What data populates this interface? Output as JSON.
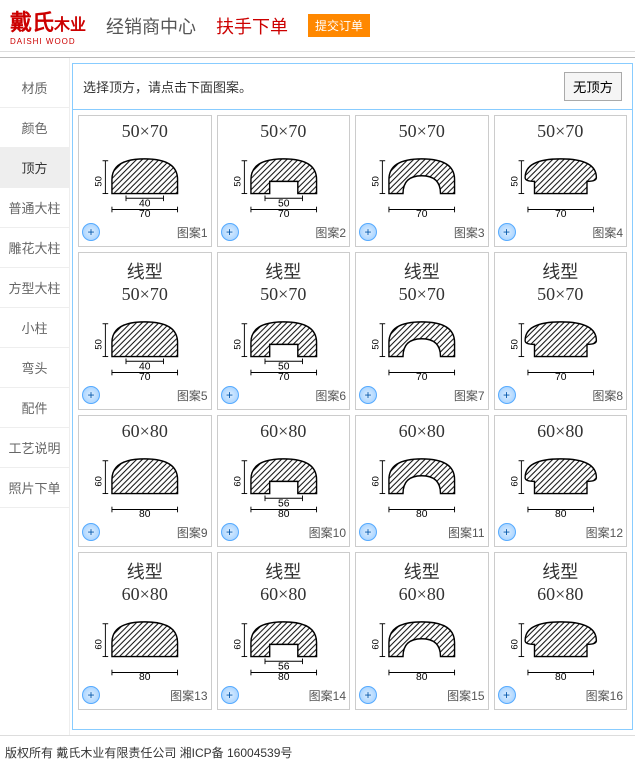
{
  "header": {
    "logo_main": "戴氏",
    "logo_suffix": "木业",
    "logo_en": "DAISHI WOOD",
    "title_center": "经销商中心",
    "title_order": "扶手下单",
    "submit": "提交订单"
  },
  "sidebar": {
    "items": [
      "材质",
      "颜色",
      "顶方",
      "普通大柱",
      "雕花大柱",
      "方型大柱",
      "小柱",
      "弯头",
      "配件",
      "工艺说明",
      "照片下单"
    ],
    "active_index": 2
  },
  "content": {
    "instruction": "选择顶方，请点击下面图案。",
    "no_top": "无顶方",
    "patterns": [
      {
        "top": "50×70",
        "line": false,
        "w1": "40",
        "w2": "70",
        "h": "50",
        "shape": "round",
        "label": "图案1"
      },
      {
        "top": "50×70",
        "line": false,
        "w1": "50",
        "w2": "70",
        "h": "50",
        "shape": "notch",
        "label": "图案2"
      },
      {
        "top": "50×70",
        "line": false,
        "w1": "",
        "w2": "70",
        "h": "50",
        "shape": "arch",
        "label": "图案3"
      },
      {
        "top": "50×70",
        "line": false,
        "w1": "",
        "w2": "70",
        "h": "50",
        "shape": "mushroom",
        "label": "图案4"
      },
      {
        "top": "50×70",
        "line": true,
        "w1": "40",
        "w2": "70",
        "h": "50",
        "shape": "round",
        "label": "图案5"
      },
      {
        "top": "50×70",
        "line": true,
        "w1": "50",
        "w2": "70",
        "h": "50",
        "shape": "notch",
        "label": "图案6"
      },
      {
        "top": "50×70",
        "line": true,
        "w1": "",
        "w2": "70",
        "h": "50",
        "shape": "arch",
        "label": "图案7"
      },
      {
        "top": "50×70",
        "line": true,
        "w1": "",
        "w2": "70",
        "h": "50",
        "shape": "mushroom",
        "label": "图案8"
      },
      {
        "top": "60×80",
        "line": false,
        "w1": "",
        "w2": "80",
        "h": "60",
        "shape": "round",
        "label": "图案9"
      },
      {
        "top": "60×80",
        "line": false,
        "w1": "56",
        "w2": "80",
        "h": "60",
        "shape": "notch",
        "label": "图案10"
      },
      {
        "top": "60×80",
        "line": false,
        "w1": "",
        "w2": "80",
        "h": "60",
        "shape": "arch",
        "label": "图案11"
      },
      {
        "top": "60×80",
        "line": false,
        "w1": "",
        "w2": "80",
        "h": "60",
        "shape": "mushroom",
        "label": "图案12"
      },
      {
        "top": "60×80",
        "line": true,
        "w1": "",
        "w2": "80",
        "h": "60",
        "shape": "round",
        "label": "图案13"
      },
      {
        "top": "60×80",
        "line": true,
        "w1": "56",
        "w2": "80",
        "h": "60",
        "shape": "notch",
        "label": "图案14"
      },
      {
        "top": "60×80",
        "line": true,
        "w1": "",
        "w2": "80",
        "h": "60",
        "shape": "arch",
        "label": "图案15"
      },
      {
        "top": "60×80",
        "line": true,
        "w1": "",
        "w2": "80",
        "h": "60",
        "shape": "mushroom",
        "label": "图案16"
      }
    ]
  },
  "footer": {
    "text": "版权所有 戴氏木业有限责任公司   湘ICP备 16004539号"
  },
  "style": {
    "hatch_color": "#000",
    "card_border": "#cccccc",
    "content_border": "#88ccff",
    "accent": "#cc0000",
    "submit_bg": "#ff8800"
  }
}
